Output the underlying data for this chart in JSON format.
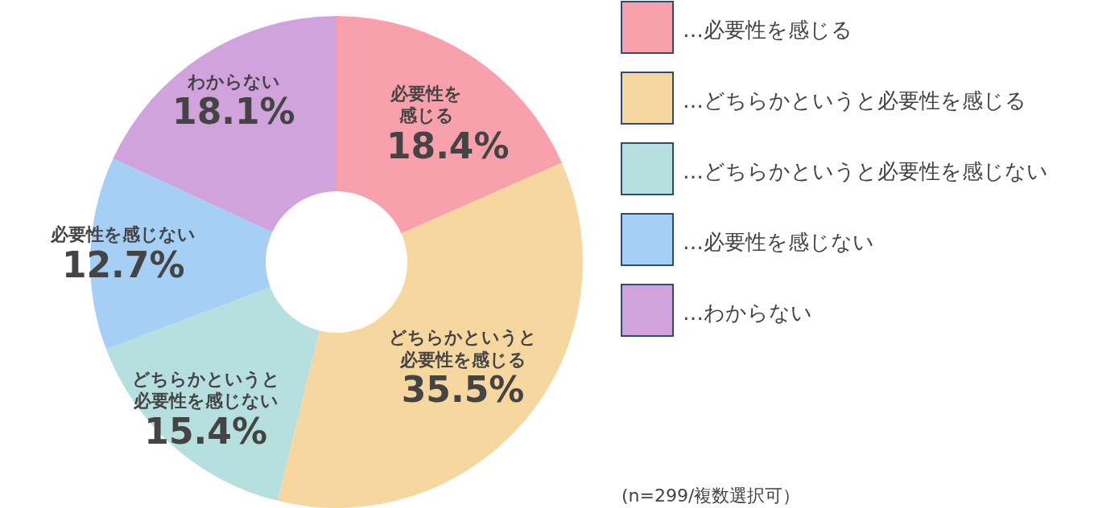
{
  "chart_data": {
    "type": "donut",
    "categories": [
      "…必要性を感じる",
      "…どちらかというと必要性を感じる",
      "…どちらかというと必要性を感じない",
      "…必要性を感じない",
      "…わからない"
    ],
    "values": [
      18.4,
      35.5,
      15.4,
      12.7,
      18.1
    ],
    "value_labels": [
      "18.4%",
      "35.5%",
      "15.4%",
      "12.7%",
      "18.1%"
    ],
    "colors": [
      "#f8a0ab",
      "#f6d79f",
      "#b6dfe0",
      "#a6cff5",
      "#d0a3dc"
    ],
    "annotations": [
      "必要性を感じる",
      "どちらかというと必要性を感じる",
      "どちらかというと必要性を感じない",
      "必要性を感じない",
      "わからない",
      "(n=299/複数選択可）"
    ],
    "legend": "right"
  }
}
